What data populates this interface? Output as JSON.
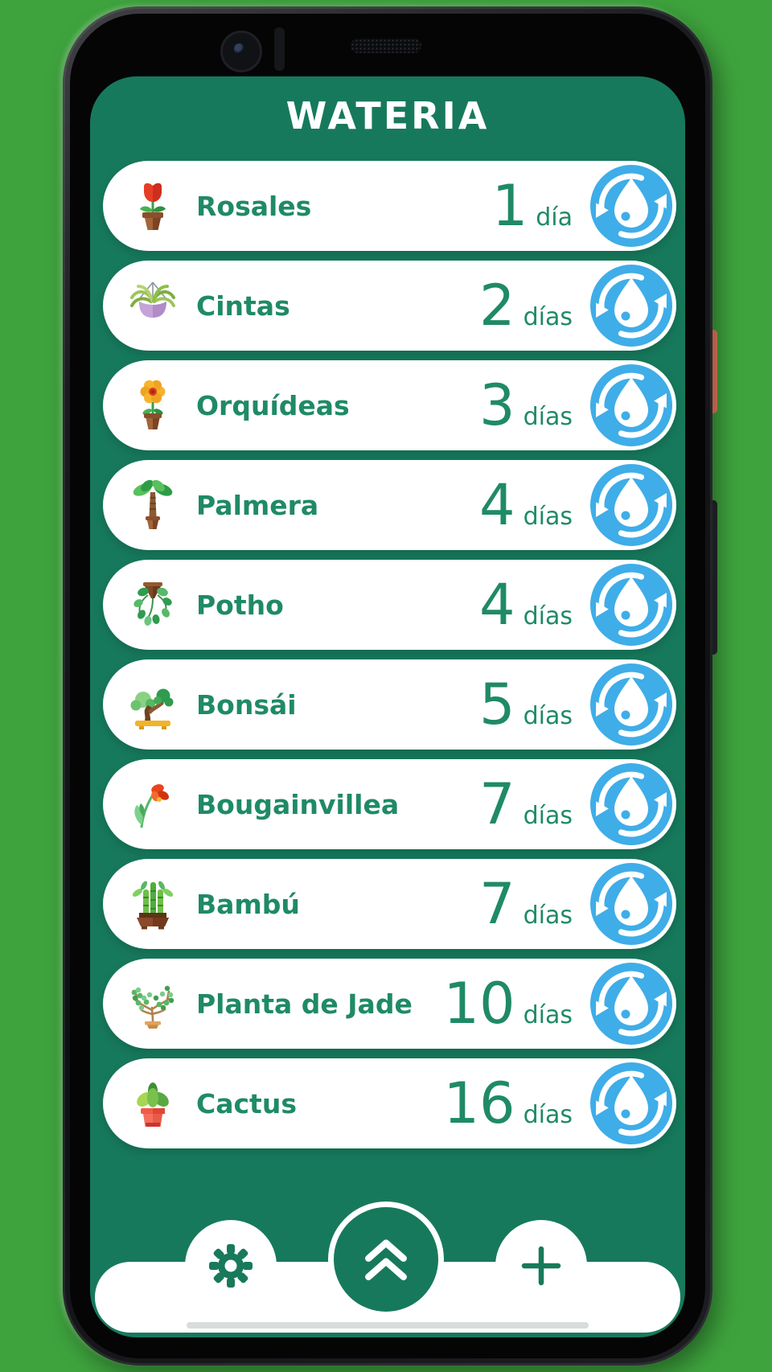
{
  "app": {
    "title": "WATERIA"
  },
  "theme": {
    "outer_background": "#3ea33d",
    "app_background": "#17795c",
    "card_background": "#ffffff",
    "text_color": "#1f8a66",
    "water_button_color": "#3fade8",
    "power_button_color": "#ee7e60"
  },
  "plants": [
    {
      "name": "Rosales",
      "interval_value": "1",
      "interval_unit": "día",
      "icon": "rosales-icon"
    },
    {
      "name": "Cintas",
      "interval_value": "2",
      "interval_unit": "días",
      "icon": "cintas-icon"
    },
    {
      "name": "Orquídeas",
      "interval_value": "3",
      "interval_unit": "días",
      "icon": "orquideas-icon"
    },
    {
      "name": "Palmera",
      "interval_value": "4",
      "interval_unit": "días",
      "icon": "palmera-icon"
    },
    {
      "name": "Potho",
      "interval_value": "4",
      "interval_unit": "días",
      "icon": "potho-icon"
    },
    {
      "name": "Bonsái",
      "interval_value": "5",
      "interval_unit": "días",
      "icon": "bonsai-icon"
    },
    {
      "name": "Bougainvillea",
      "interval_value": "7",
      "interval_unit": "días",
      "icon": "bougainvillea-icon"
    },
    {
      "name": "Bambú",
      "interval_value": "7",
      "interval_unit": "días",
      "icon": "bambu-icon"
    },
    {
      "name": "Planta de Jade",
      "interval_value": "10",
      "interval_unit": "días",
      "icon": "jade-icon"
    },
    {
      "name": "Cactus",
      "interval_value": "16",
      "interval_unit": "días",
      "icon": "cactus-icon"
    }
  ],
  "row_action_icon": "water-refresh-icon",
  "bottom_bar": {
    "buttons": [
      {
        "id": "settings-button",
        "icon": "gear-icon"
      },
      {
        "id": "scroll-to-top-button",
        "icon": "double-chevron-up-icon"
      },
      {
        "id": "add-plant-button",
        "icon": "plus-icon"
      }
    ]
  }
}
